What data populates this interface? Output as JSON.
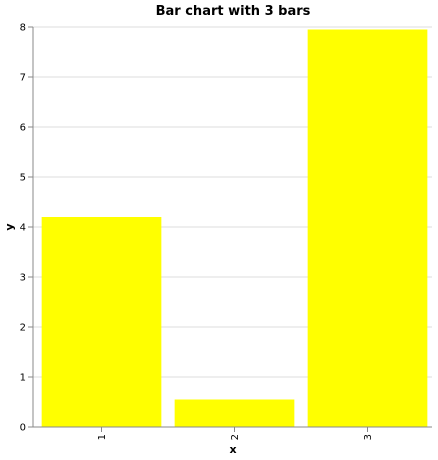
{
  "chart_data": {
    "type": "bar",
    "title": "Bar chart with 3 bars",
    "xlabel": "x",
    "ylabel": "y",
    "categories": [
      "1",
      "2",
      "3"
    ],
    "values": [
      4.2,
      0.55,
      7.95
    ],
    "ylim": [
      0,
      8
    ],
    "yticks": [
      "0",
      "1",
      "2",
      "3",
      "4",
      "5",
      "6",
      "7",
      "8"
    ],
    "grid": true,
    "legend": "none",
    "bar_color": "#ffff00"
  }
}
